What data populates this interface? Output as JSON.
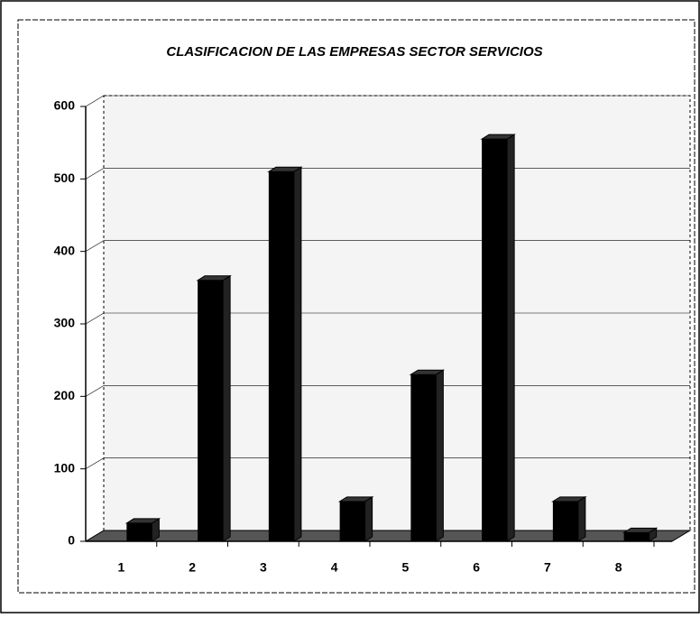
{
  "chart_data": {
    "type": "bar",
    "title": "CLASIFICACION DE LAS EMPRESAS SECTOR SERVICIOS",
    "categories": [
      "1",
      "2",
      "3",
      "4",
      "5",
      "6",
      "7",
      "8"
    ],
    "values": [
      25,
      360,
      510,
      55,
      230,
      555,
      55,
      12
    ],
    "color": "#000000",
    "ylim": [
      0,
      600
    ],
    "yticks": [
      0,
      100,
      200,
      300,
      400,
      500,
      600
    ],
    "grid": true
  }
}
